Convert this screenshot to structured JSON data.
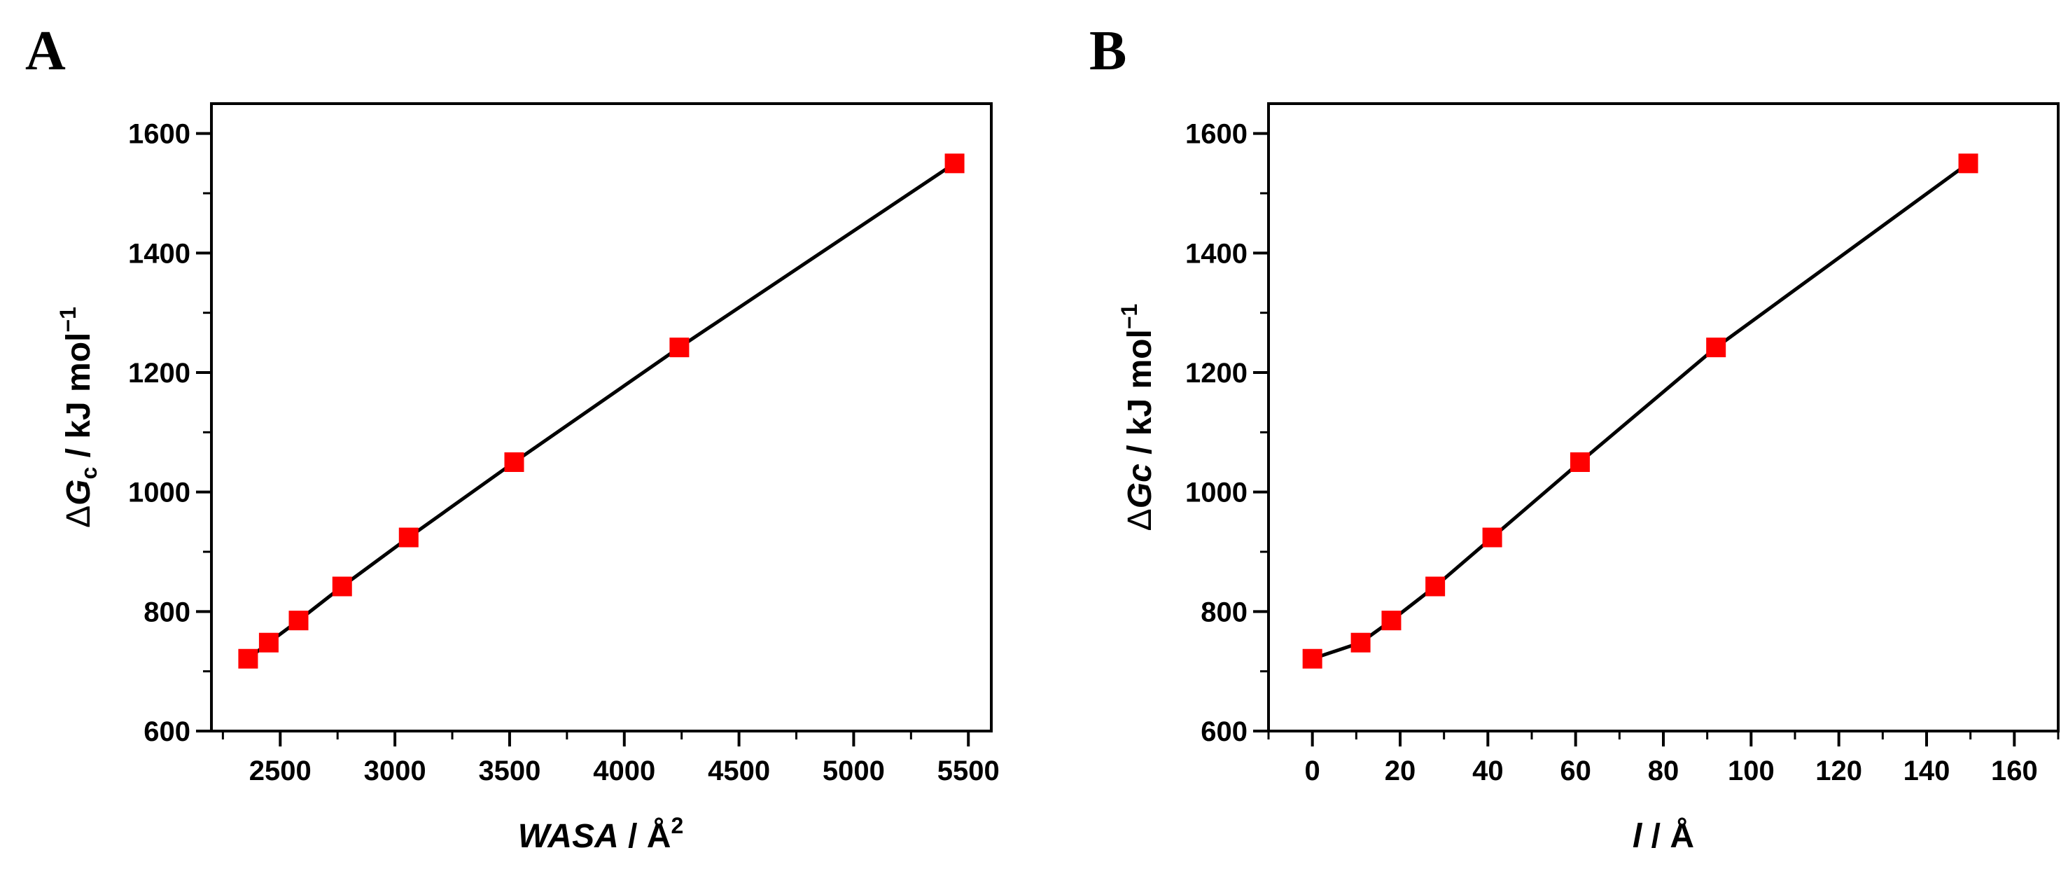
{
  "panel_labels": {
    "a": "A",
    "b": "B"
  },
  "chart_data": [
    {
      "type": "line",
      "panel": "A",
      "title": "",
      "xlabel": {
        "main": "WASA",
        "sep": " / ",
        "unit": "Å",
        "sup": "2"
      },
      "ylabel": {
        "delta": "Δ",
        "main": "G",
        "sub": "c",
        "rest": " / kJ mol",
        "sup": "−1"
      },
      "xlim": [
        2200,
        5600
      ],
      "ylim": [
        600,
        1650
      ],
      "xticks": [
        2500,
        3000,
        3500,
        4000,
        4500,
        5000,
        5500
      ],
      "yticks": [
        600,
        800,
        1000,
        1200,
        1400,
        1600
      ],
      "xtick_labels": [
        "2500",
        "3000",
        "3500",
        "4000",
        "4500",
        "5000",
        "5500"
      ],
      "ytick_labels": [
        "600",
        "800",
        "1000",
        "1200",
        "1400",
        "1600"
      ],
      "x_minor_step": 250,
      "y_minor_step": 100,
      "marker": "square",
      "marker_color": "#ff0000",
      "line_color": "#000000",
      "series": [
        {
          "name": "ΔGc",
          "x": [
            2360,
            2450,
            2580,
            2770,
            3060,
            3520,
            4240,
            5440
          ],
          "y": [
            721,
            748,
            785,
            842,
            924,
            1050,
            1242,
            1550
          ]
        }
      ]
    },
    {
      "type": "line",
      "panel": "B",
      "title": "",
      "xlabel": {
        "main": "l",
        "sep": " / ",
        "unit": "Å",
        "sup": ""
      },
      "ylabel": {
        "delta": "Δ",
        "main": "Gc",
        "sub": "",
        "rest": " / kJ mol",
        "sup": "−1"
      },
      "xlim": [
        -10,
        170
      ],
      "ylim": [
        600,
        1650
      ],
      "xticks": [
        0,
        20,
        40,
        60,
        80,
        100,
        120,
        140,
        160
      ],
      "yticks": [
        600,
        800,
        1000,
        1200,
        1400,
        1600
      ],
      "xtick_labels": [
        "0",
        "20",
        "40",
        "60",
        "80",
        "100",
        "120",
        "140",
        "160"
      ],
      "ytick_labels": [
        "600",
        "800",
        "1000",
        "1200",
        "1400",
        "1600"
      ],
      "x_minor_step": 10,
      "y_minor_step": 100,
      "marker": "square",
      "marker_color": "#ff0000",
      "line_color": "#000000",
      "series": [
        {
          "name": "ΔGc",
          "x": [
            0,
            11,
            18,
            28,
            41,
            61,
            92,
            149.5
          ],
          "y": [
            721,
            748,
            785,
            842,
            924,
            1050,
            1242,
            1550
          ]
        }
      ]
    }
  ]
}
